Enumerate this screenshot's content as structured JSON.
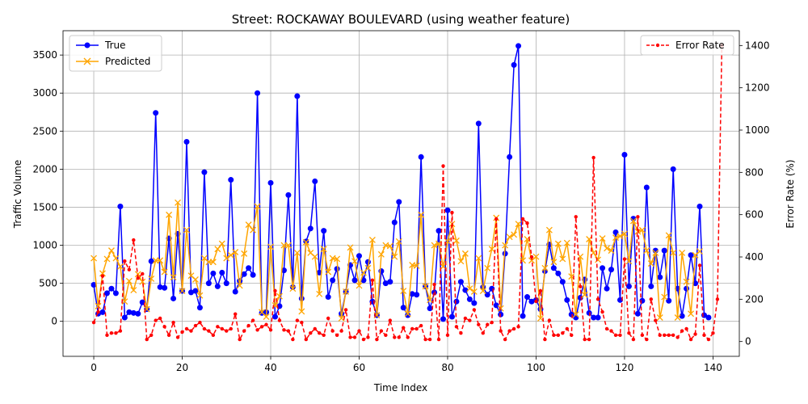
{
  "chart_data": {
    "type": "line",
    "title": "Street: ROCKAWAY BOULEVARD (using weather feature)",
    "xlabel": "Time Index",
    "ylabel_left": "Traffic Volume",
    "ylabel_right": "Error Rate (%)",
    "xlim": [
      -6.95,
      145.95
    ],
    "ylim_left": [
      -460,
      3820
    ],
    "ylim_right": [
      -70,
      1470
    ],
    "x_ticks": [
      0,
      20,
      40,
      60,
      80,
      100,
      120,
      140
    ],
    "y_left_ticks": [
      0,
      500,
      1000,
      1500,
      2000,
      2500,
      3000,
      3500
    ],
    "y_right_ticks": [
      0,
      200,
      400,
      600,
      800,
      1000,
      1200,
      1400
    ],
    "grid": true,
    "legend_left_placement": "upper-left",
    "legend_right_placement": "upper-right",
    "series": [
      {
        "name": "True",
        "axis": "left",
        "color": "#0000ff",
        "marker": "circle",
        "values": [
          480,
          100,
          120,
          370,
          430,
          370,
          1510,
          50,
          120,
          110,
          100,
          250,
          160,
          790,
          2740,
          450,
          440,
          1090,
          300,
          1150,
          400,
          2360,
          380,
          400,
          180,
          1960,
          500,
          630,
          460,
          640,
          500,
          1860,
          390,
          530,
          620,
          700,
          610,
          3000,
          110,
          120,
          1820,
          60,
          200,
          670,
          1660,
          450,
          2960,
          300,
          1050,
          1220,
          1840,
          640,
          1190,
          320,
          540,
          690,
          100,
          390,
          740,
          540,
          860,
          540,
          780,
          260,
          80,
          660,
          500,
          520,
          1300,
          1570,
          180,
          80,
          360,
          350,
          2160,
          460,
          170,
          380,
          1190,
          30,
          1460,
          60,
          260,
          520,
          410,
          290,
          240,
          2600,
          450,
          350,
          430,
          210,
          90,
          890,
          2160,
          3370,
          3620,
          70,
          320,
          260,
          280,
          160,
          660,
          1010,
          700,
          630,
          520,
          280,
          90,
          50,
          310,
          550,
          110,
          50,
          50,
          700,
          430,
          680,
          1170,
          280,
          2190,
          460,
          1350,
          100,
          270,
          1760,
          460,
          930,
          580,
          930,
          270,
          2000,
          430,
          70,
          430,
          870,
          500,
          1510,
          80,
          50
        ]
      },
      {
        "name": "Predicted",
        "axis": "left",
        "color": "#ffa500",
        "marker": "x",
        "values": [
          830,
          200,
          630,
          820,
          930,
          830,
          720,
          260,
          530,
          410,
          620,
          520,
          160,
          560,
          800,
          800,
          650,
          1400,
          580,
          1560,
          400,
          1200,
          600,
          550,
          340,
          830,
          780,
          780,
          950,
          1020,
          830,
          870,
          910,
          470,
          890,
          1270,
          1200,
          1510,
          120,
          60,
          980,
          210,
          330,
          1000,
          1000,
          430,
          900,
          130,
          1040,
          900,
          850,
          360,
          950,
          650,
          830,
          820,
          40,
          390,
          970,
          790,
          470,
          640,
          700,
          1070,
          80,
          880,
          1000,
          990,
          850,
          1050,
          400,
          100,
          740,
          730,
          1400,
          460,
          280,
          1000,
          1020,
          720,
          1050,
          1280,
          1060,
          790,
          890,
          430,
          390,
          830,
          400,
          700,
          950,
          1360,
          170,
          1000,
          1110,
          1140,
          1280,
          800,
          1080,
          800,
          850,
          40,
          700,
          1200,
          780,
          1020,
          820,
          1030,
          590,
          90,
          850,
          350,
          1080,
          900,
          810,
          1090,
          960,
          930,
          1100,
          1120,
          1150,
          790,
          1320,
          1180,
          1200,
          930,
          760,
          900,
          50,
          320,
          1130,
          900,
          50,
          900,
          520,
          100,
          870,
          920
        ]
      },
      {
        "name": "Error Rate",
        "axis": "right",
        "color": "#ff0000",
        "marker": "dot",
        "dashed": true,
        "values": [
          90,
          140,
          310,
          30,
          40,
          40,
          50,
          380,
          340,
          480,
          300,
          320,
          10,
          30,
          100,
          110,
          70,
          30,
          90,
          20,
          45,
          60,
          50,
          75,
          90,
          60,
          50,
          30,
          70,
          60,
          50,
          60,
          130,
          10,
          50,
          75,
          100,
          55,
          70,
          80,
          55,
          240,
          100,
          55,
          50,
          10,
          100,
          90,
          10,
          40,
          60,
          40,
          30,
          110,
          50,
          30,
          50,
          150,
          20,
          20,
          50,
          10,
          20,
          290,
          10,
          50,
          30,
          100,
          20,
          20,
          65,
          20,
          60,
          60,
          75,
          10,
          10,
          270,
          10,
          830,
          30,
          610,
          70,
          40,
          110,
          100,
          150,
          80,
          40,
          80,
          90,
          580,
          50,
          10,
          50,
          60,
          70,
          580,
          560,
          400,
          190,
          240,
          10,
          100,
          30,
          30,
          40,
          60,
          30,
          590,
          260,
          10,
          10,
          870,
          200,
          140,
          60,
          50,
          30,
          30,
          390,
          40,
          10,
          590,
          30,
          10,
          200,
          100,
          30,
          30,
          30,
          30,
          20,
          50,
          60,
          10,
          35,
          360,
          30,
          10,
          40,
          200,
          1400
        ]
      }
    ]
  }
}
